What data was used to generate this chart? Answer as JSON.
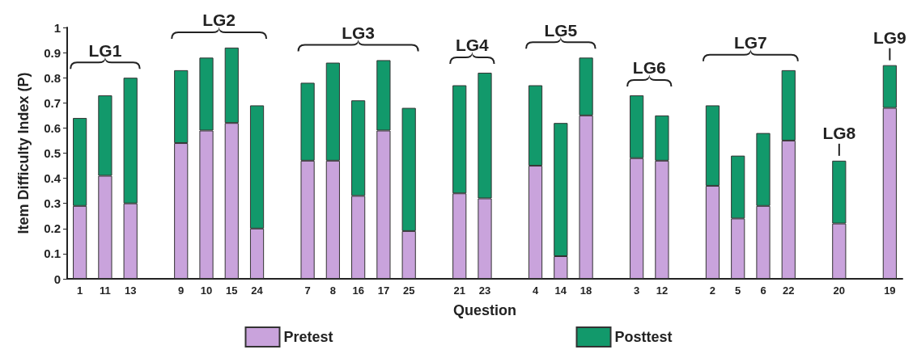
{
  "chart_data": {
    "type": "bar",
    "xlabel": "Question",
    "ylabel": "Item Difficulty Index (P)",
    "categories": [
      "1",
      "11",
      "13",
      null,
      "9",
      "10",
      "15",
      "24",
      null,
      "7",
      "8",
      "16",
      "17",
      "25",
      null,
      "21",
      "23",
      null,
      "4",
      "14",
      "18",
      null,
      "3",
      "12",
      null,
      "2",
      "5",
      "6",
      "22",
      null,
      "20",
      null,
      "19"
    ],
    "series": [
      {
        "name": "Pretest",
        "color": "#c9a3dc",
        "values": [
          0.29,
          0.41,
          0.3,
          null,
          0.54,
          0.59,
          0.62,
          0.2,
          null,
          0.47,
          0.47,
          0.33,
          0.59,
          0.19,
          null,
          0.34,
          0.32,
          null,
          0.45,
          0.09,
          0.65,
          null,
          0.48,
          0.47,
          null,
          0.37,
          0.24,
          0.29,
          0.55,
          null,
          0.22,
          null,
          0.68
        ]
      },
      {
        "name": "Posttest",
        "color": "#12996b",
        "values": [
          0.35,
          0.32,
          0.5,
          null,
          0.29,
          0.29,
          0.3,
          0.49,
          null,
          0.31,
          0.39,
          0.38,
          0.28,
          0.49,
          null,
          0.43,
          0.5,
          null,
          0.32,
          0.53,
          0.23,
          null,
          0.25,
          0.18,
          null,
          0.32,
          0.25,
          0.29,
          0.28,
          null,
          0.25,
          null,
          0.17
        ]
      }
    ],
    "stacked": true,
    "ylim": [
      0,
      1
    ],
    "yticks": [
      0,
      0.1,
      0.2,
      0.3,
      0.4,
      0.5,
      0.6,
      0.7,
      0.8,
      0.9,
      1
    ],
    "grid": false,
    "legend": "bottom",
    "annotations": [
      "LG1",
      "LG2",
      "LG3",
      "LG4",
      "LG5",
      "LG6",
      "LG7",
      "LG8",
      "LG9"
    ]
  }
}
